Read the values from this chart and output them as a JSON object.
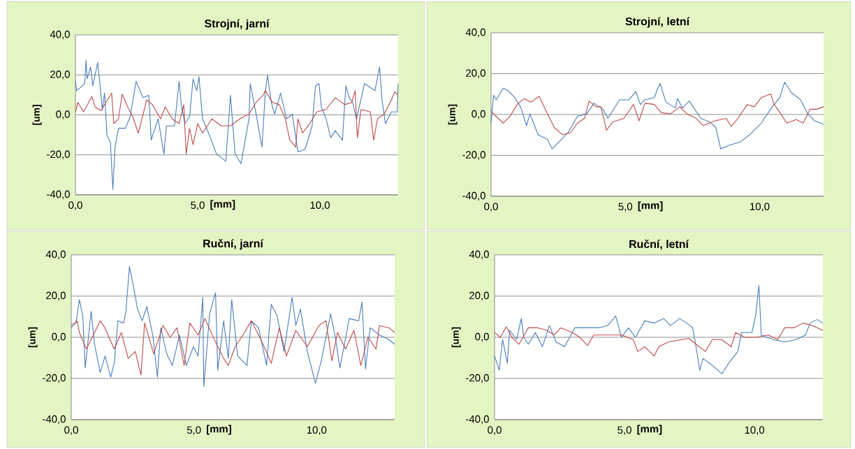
{
  "chart_data": [
    {
      "type": "line",
      "title": "Strojní, jarní",
      "xlabel": "[mm]",
      "ylabel": "[um]",
      "xlim": [
        0,
        13.2
      ],
      "ylim": [
        -40,
        40
      ],
      "grid": "y",
      "xticks": [
        {
          "value": 0,
          "label": "0,0"
        },
        {
          "value": 5,
          "label": "5,0"
        },
        {
          "value": 10,
          "label": "10,0"
        }
      ],
      "yticks": [
        {
          "value": -40,
          "label": "-40,0"
        },
        {
          "value": -20,
          "label": "-20,0"
        },
        {
          "value": 0,
          "label": "0,0"
        },
        {
          "value": 20,
          "label": "20,0"
        },
        {
          "value": 40,
          "label": "40,0"
        }
      ],
      "series": [
        {
          "color": "#4a7ebb",
          "x": [
            0.0,
            0.05,
            0.38,
            0.43,
            0.48,
            0.62,
            0.71,
            0.91,
            1.0,
            1.1,
            1.19,
            1.29,
            1.43,
            1.53,
            1.62,
            1.76,
            2.05,
            2.24,
            2.48,
            2.76,
            3.0,
            3.1,
            3.38,
            3.62,
            3.72,
            4.05,
            4.24,
            4.34,
            4.48,
            4.67,
            4.81,
            4.96,
            5.05,
            5.2,
            5.48,
            5.77,
            6.15,
            6.34,
            6.53,
            6.77,
            7.1,
            7.15,
            7.39,
            7.63,
            7.77,
            7.86,
            8.01,
            8.15,
            8.39,
            8.63,
            8.87,
            9.1,
            9.39,
            9.68,
            9.82,
            9.96,
            10.06,
            10.25,
            10.44,
            10.63,
            10.92,
            11.06,
            11.2,
            11.34,
            11.49,
            11.63,
            11.82,
            11.96,
            12.25,
            12.44,
            12.54,
            12.68,
            12.92,
            13.16,
            13.2
          ],
          "values": [
            16.8,
            12.1,
            15.6,
            27.4,
            18.0,
            23.9,
            14.5,
            26.2,
            15.6,
            2.7,
            10.9,
            -10.2,
            -13.8,
            -37.3,
            -16.1,
            -6.7,
            -6.7,
            -0.8,
            16.8,
            8.6,
            9.8,
            -12.6,
            -2.0,
            -19.6,
            -5.5,
            -5.5,
            16.8,
            3.9,
            -4.4,
            -0.8,
            18.0,
            12.1,
            19.2,
            -2.0,
            -10.2,
            -19.6,
            -23.2,
            9.8,
            -19.6,
            -24.4,
            -2.0,
            15.6,
            0.4,
            -16.1,
            12.1,
            19.8,
            6.2,
            0.4,
            10.9,
            -2.0,
            0.4,
            -18.5,
            -17.3,
            -5.5,
            14.5,
            15.6,
            3.9,
            -2.0,
            -11.4,
            -7.9,
            -12.6,
            14.5,
            8.6,
            6.2,
            -2.0,
            5.1,
            15.6,
            14.5,
            12.1,
            23.9,
            7.4,
            -4.4,
            1.5,
            1.5,
            15.6
          ]
        },
        {
          "color": "#be4b48",
          "x": [
            0.0,
            0.1,
            0.33,
            0.67,
            0.81,
            1.05,
            1.24,
            1.48,
            1.57,
            1.76,
            1.91,
            2.14,
            2.34,
            2.57,
            2.72,
            2.91,
            3.15,
            3.48,
            3.67,
            3.96,
            4.24,
            4.43,
            4.53,
            4.67,
            4.81,
            5.0,
            5.2,
            5.58,
            5.96,
            6.34,
            6.72,
            7.1,
            7.39,
            7.67,
            7.77,
            8.06,
            8.34,
            8.58,
            8.77,
            9.01,
            9.1,
            9.29,
            9.58,
            9.87,
            10.25,
            10.63,
            11.01,
            11.3,
            11.44,
            11.53,
            11.68,
            12.06,
            12.2,
            12.35,
            12.63,
            12.92,
            13.06,
            13.2
          ],
          "values": [
            1.5,
            6.2,
            1.5,
            9.2,
            3.9,
            2.1,
            6.2,
            10.9,
            -4.4,
            -2.0,
            10.4,
            3.9,
            -0.8,
            -9.1,
            -2.0,
            7.4,
            5.1,
            -2.0,
            3.9,
            -2.0,
            -4.4,
            5.1,
            -19.6,
            -6.7,
            -14.9,
            -4.4,
            -9.1,
            -2.0,
            -5.5,
            -5.5,
            -2.0,
            0.4,
            6.2,
            9.8,
            12.1,
            6.2,
            5.1,
            -2.0,
            -12.6,
            -16.1,
            -2.0,
            -9.1,
            -4.4,
            1.5,
            2.7,
            8.6,
            5.1,
            6.2,
            12.1,
            -11.4,
            2.7,
            1.5,
            -12.6,
            -2.0,
            0.4,
            7.4,
            11.5,
            9.8
          ]
        }
      ]
    },
    {
      "type": "line",
      "title": "Strojní, letní",
      "xlabel": "[mm]",
      "ylabel": "[um]",
      "xlim": [
        0,
        12.38
      ],
      "ylim": [
        -40,
        40
      ],
      "grid": "y",
      "xticks": [
        {
          "value": 0,
          "label": "0,0"
        },
        {
          "value": 5,
          "label": "5,0"
        },
        {
          "value": 10,
          "label": "10,0"
        }
      ],
      "yticks": [
        {
          "value": -40,
          "label": "-40,0"
        },
        {
          "value": -20,
          "label": "-20,0"
        },
        {
          "value": 0,
          "label": "0,0"
        },
        {
          "value": 20,
          "label": "20,0"
        },
        {
          "value": 40,
          "label": "40,0"
        }
      ],
      "series": [
        {
          "color": "#4a7ebb",
          "x": [
            0,
            0.09,
            0.19,
            0.45,
            0.62,
            0.88,
            1.1,
            1.32,
            1.45,
            1.75,
            2.1,
            2.27,
            2.53,
            2.87,
            3.22,
            3.56,
            3.83,
            4.17,
            4.35,
            4.78,
            5.13,
            5.39,
            5.56,
            5.73,
            6.08,
            6.21,
            6.29,
            6.51,
            6.86,
            6.94,
            7.13,
            7.38,
            7.81,
            8.15,
            8.37,
            8.55,
            8.85,
            9.28,
            9.63,
            10.06,
            10.41,
            10.75,
            10.93,
            11.19,
            11.53,
            11.79,
            12.05,
            12.38
          ],
          "values": [
            -4.2,
            9.5,
            7.2,
            12.9,
            11.8,
            8.3,
            3.8,
            -5.4,
            0.3,
            -9.9,
            -12.2,
            -16.8,
            -13.4,
            -8.8,
            -0.8,
            0.3,
            5.5,
            2.6,
            -1.9,
            7.2,
            7.2,
            11.2,
            4.9,
            7.2,
            8.3,
            12.9,
            15.2,
            6.1,
            3.2,
            7.8,
            3.2,
            6.6,
            -1.9,
            -3.7,
            -6.5,
            -16.8,
            -15.1,
            -13.4,
            -9.9,
            -4.2,
            2.6,
            8.3,
            15.8,
            10.6,
            7.2,
            0.3,
            -3.1,
            -4.8
          ]
        },
        {
          "color": "#be4b48",
          "x": [
            0,
            0.45,
            0.71,
            0.97,
            1.23,
            1.49,
            1.79,
            2.1,
            2.36,
            2.66,
            2.96,
            3.22,
            3.48,
            3.65,
            3.9,
            4.09,
            4.3,
            4.52,
            4.95,
            5.3,
            5.51,
            5.73,
            6.08,
            6.34,
            6.68,
            7.03,
            7.29,
            7.64,
            7.9,
            8.33,
            8.76,
            8.94,
            9.19,
            9.54,
            9.8,
            10.06,
            10.41,
            10.54,
            10.67,
            11.01,
            11.36,
            11.62,
            11.88,
            12.14,
            12.38
          ],
          "values": [
            1.5,
            -4.2,
            -0.8,
            4.9,
            7.8,
            6.1,
            8.9,
            0.3,
            -6.5,
            -9.9,
            -8.8,
            -4.2,
            -1.9,
            6.6,
            3.8,
            3.8,
            -7.7,
            -3.7,
            -1.9,
            4.9,
            -3.1,
            5.5,
            4.9,
            0.9,
            0.3,
            3.8,
            0.3,
            -1.9,
            -5.4,
            -3.1,
            -1.9,
            -5.9,
            -1.9,
            4.9,
            3.8,
            8.3,
            10.1,
            4.9,
            2.6,
            -4.2,
            -2.5,
            -4.2,
            2.6,
            2.6,
            3.8
          ]
        }
      ]
    },
    {
      "type": "line",
      "title": "Ruční, jarní",
      "xlabel": "[mm]",
      "ylabel": "[um]",
      "xlim": [
        0,
        13.18
      ],
      "ylim": [
        -40,
        40
      ],
      "grid": "y",
      "xticks": [
        {
          "value": 0,
          "label": "0,0"
        },
        {
          "value": 5,
          "label": "5,0"
        },
        {
          "value": 10,
          "label": "10,0"
        }
      ],
      "yticks": [
        {
          "value": -40,
          "label": "-40,0"
        },
        {
          "value": -20,
          "label": "-20,0"
        },
        {
          "value": 0,
          "label": "0,0"
        },
        {
          "value": 20,
          "label": "20,0"
        },
        {
          "value": 40,
          "label": "40,0"
        }
      ],
      "series": [
        {
          "color": "#4a7ebb",
          "x": [
            0,
            0.19,
            0.33,
            0.47,
            0.57,
            0.71,
            0.81,
            0.95,
            1.18,
            1.38,
            1.61,
            1.75,
            1.9,
            2.13,
            2.23,
            2.37,
            2.51,
            2.7,
            2.89,
            3.08,
            3.32,
            3.51,
            3.65,
            3.89,
            4.12,
            4.41,
            4.69,
            4.98,
            5.17,
            5.36,
            5.4,
            5.64,
            5.88,
            5.97,
            6.21,
            6.4,
            6.54,
            6.78,
            7.16,
            7.34,
            7.63,
            7.96,
            8.15,
            8.39,
            8.67,
            9.0,
            9.15,
            9.34,
            9.62,
            9.95,
            10.19,
            10.57,
            10.76,
            10.95,
            11.33,
            11.71,
            11.85,
            11.99,
            12.18,
            12.56,
            12.94,
            13.18
          ],
          "values": [
            4.6,
            6.9,
            18.3,
            10.3,
            -14.9,
            1.1,
            12.6,
            -3.4,
            -17.1,
            -9.1,
            -19.4,
            -12.6,
            8.0,
            6.9,
            12.6,
            34.3,
            26.3,
            13.7,
            8.0,
            14.9,
            1.1,
            -19.4,
            4.6,
            -8.0,
            -13.7,
            1.1,
            -13.7,
            -4.6,
            -9.1,
            19.4,
            -24.0,
            11.4,
            21.7,
            -16.0,
            8.0,
            -10.3,
            18.3,
            -9.1,
            -13.7,
            8.0,
            4.6,
            -13.7,
            16.0,
            10.3,
            -6.9,
            19.4,
            5.7,
            13.7,
            -6.9,
            -22.3,
            -11.4,
            11.4,
            0,
            -14.9,
            9.1,
            8.0,
            17.1,
            -15.4,
            4.6,
            1.1,
            -1.1,
            -3.4
          ]
        },
        {
          "color": "#be4b48",
          "x": [
            0,
            0.24,
            0.33,
            0.62,
            0.9,
            1.18,
            1.37,
            1.75,
            2.04,
            2.32,
            2.61,
            2.84,
            2.99,
            3.36,
            3.74,
            4.03,
            4.31,
            4.6,
            4.83,
            5.17,
            5.45,
            5.83,
            6.21,
            6.4,
            6.68,
            7.06,
            7.34,
            7.73,
            8.15,
            8.48,
            8.77,
            9.15,
            9.62,
            10.09,
            10.38,
            10.62,
            10.85,
            11.18,
            11.52,
            11.8,
            12.09,
            12.42,
            12.56,
            12.94,
            13.18
          ],
          "values": [
            5.7,
            8.0,
            2.3,
            -5.7,
            1.1,
            8.0,
            4.6,
            -5.7,
            2.3,
            -10.3,
            -6.9,
            -18.3,
            6.9,
            -8.0,
            5.7,
            0,
            4.6,
            -13.7,
            6.9,
            1.1,
            9.1,
            -1.1,
            -10.3,
            -13.7,
            -4.6,
            2.3,
            8.0,
            -1.1,
            -12.6,
            4.6,
            -9.1,
            3.4,
            -4.6,
            5.7,
            8.0,
            -11.4,
            2.3,
            -5.7,
            3.4,
            -13.7,
            0,
            -5.7,
            5.7,
            4.6,
            2.3
          ]
        }
      ]
    },
    {
      "type": "line",
      "title": "Ruční, letní",
      "xlabel": "[mm]",
      "ylabel": "[um]",
      "xlim": [
        0,
        12.63
      ],
      "ylim": [
        -40,
        40
      ],
      "grid": "y",
      "xticks": [
        {
          "value": 0,
          "label": "0,0"
        },
        {
          "value": 5,
          "label": "5,0"
        },
        {
          "value": 10,
          "label": "10,0"
        }
      ],
      "yticks": [
        {
          "value": -40,
          "label": "-40,0"
        },
        {
          "value": -20,
          "label": "-20,0"
        },
        {
          "value": 0,
          "label": "0,0"
        },
        {
          "value": 20,
          "label": "20,0"
        },
        {
          "value": 40,
          "label": "40,0"
        }
      ],
      "series": [
        {
          "color": "#4a7ebb",
          "x": [
            0,
            0.18,
            0.31,
            0.49,
            0.58,
            0.85,
            1.03,
            1.12,
            1.3,
            1.57,
            1.84,
            2.11,
            2.37,
            2.69,
            3.09,
            3.54,
            3.99,
            4.35,
            4.66,
            4.88,
            5.15,
            5.42,
            5.78,
            6.14,
            6.5,
            6.77,
            7.12,
            7.39,
            7.62,
            7.75,
            7.89,
            8.02,
            8.38,
            8.74,
            9.01,
            9.36,
            9.5,
            9.9,
            10.04,
            10.17,
            10.26,
            10.71,
            11.16,
            11.6,
            11.96,
            12.14,
            12.41,
            12.63
          ],
          "values": [
            -9.1,
            -16.0,
            -1.1,
            -12.6,
            3.4,
            -1.1,
            9.1,
            0,
            -3.4,
            2.3,
            -4.6,
            5.7,
            -2.3,
            -4.6,
            4.6,
            4.6,
            4.6,
            5.7,
            10.3,
            0,
            4.6,
            0,
            8.0,
            6.9,
            9.1,
            5.7,
            9.1,
            6.9,
            4.6,
            -4.6,
            -16.0,
            -10.3,
            -13.7,
            -17.7,
            -12.6,
            -6.9,
            2.3,
            2.3,
            10.3,
            25.1,
            1.1,
            -1.1,
            -2.3,
            -1.1,
            1.1,
            6.9,
            8.6,
            6.9
          ]
        },
        {
          "color": "#be4b48",
          "x": [
            0,
            0.22,
            0.45,
            0.67,
            0.94,
            1.3,
            1.66,
            2.02,
            2.29,
            2.55,
            3.0,
            3.27,
            3.58,
            3.81,
            4.35,
            4.88,
            5.33,
            5.51,
            5.78,
            6.14,
            6.32,
            6.68,
            7.21,
            7.48,
            7.75,
            8.11,
            8.38,
            8.74,
            9.1,
            9.27,
            9.63,
            10.08,
            10.53,
            10.89,
            11.16,
            11.51,
            11.87,
            12.23,
            12.63
          ],
          "values": [
            2.3,
            0,
            5.1,
            0,
            -3.4,
            4.6,
            4.6,
            3.4,
            1.1,
            4.6,
            2.3,
            0,
            -4.0,
            1.1,
            1.1,
            1.1,
            -1.1,
            -6.9,
            -4.6,
            -9.1,
            -4.6,
            -2.3,
            -1.1,
            -0.6,
            -3.4,
            -6.9,
            -1.1,
            -1.1,
            -4.6,
            2.3,
            0,
            0,
            1.1,
            -1.1,
            4.6,
            4.6,
            6.9,
            5.7,
            3.4
          ]
        }
      ]
    }
  ]
}
